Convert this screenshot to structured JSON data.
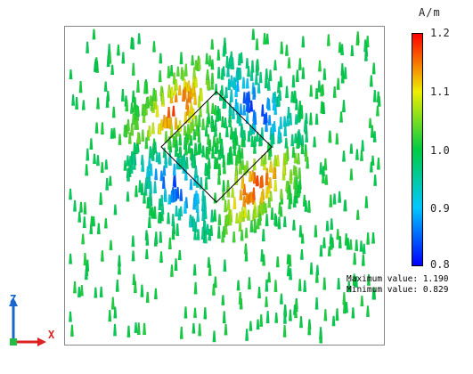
{
  "chart_data": {
    "type": "vector-field",
    "unit": "A/m",
    "colorbar": {
      "min": 0.8,
      "max": 1.2,
      "ticks": [
        "1.2",
        "1.1",
        "1.0",
        "0.9",
        "0.8"
      ],
      "colors": [
        "#0000ff",
        "#00c8ff",
        "#00cc44",
        "#eeee00",
        "#ff0000"
      ]
    },
    "stats": {
      "max_label": "Maximum value:",
      "max_value": "1.190",
      "min_label": "Minimum value:",
      "min_value": "0.829"
    },
    "axes": {
      "z": "Z",
      "x": "X"
    },
    "background_field_value": 1.0,
    "rotation_deg": 45
  },
  "colors": {
    "axis_z": "#1a66cc",
    "axis_x": "#dd2222",
    "outline": "#000000"
  }
}
